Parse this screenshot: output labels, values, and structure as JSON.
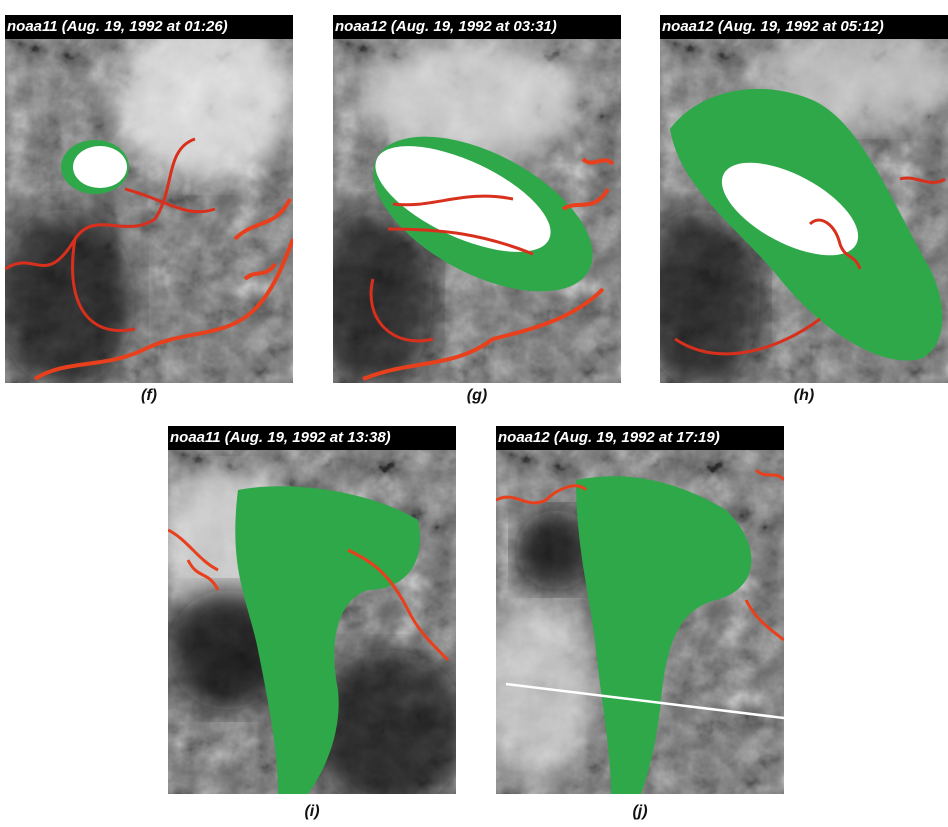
{
  "panels": [
    {
      "title": "noaa11 (Aug. 19, 1992 at 01:26)",
      "caption": "(f)"
    },
    {
      "title": "noaa12 (Aug. 19, 1992 at 03:31)",
      "caption": "(g)"
    },
    {
      "title": "noaa12 (Aug. 19, 1992 at 05:12)",
      "caption": "(h)"
    },
    {
      "title": "noaa11 (Aug. 19, 1992 at 13:38)",
      "caption": "(i)"
    },
    {
      "title": "noaa12 (Aug. 19, 1992 at 17:19)",
      "caption": "(j)"
    }
  ]
}
